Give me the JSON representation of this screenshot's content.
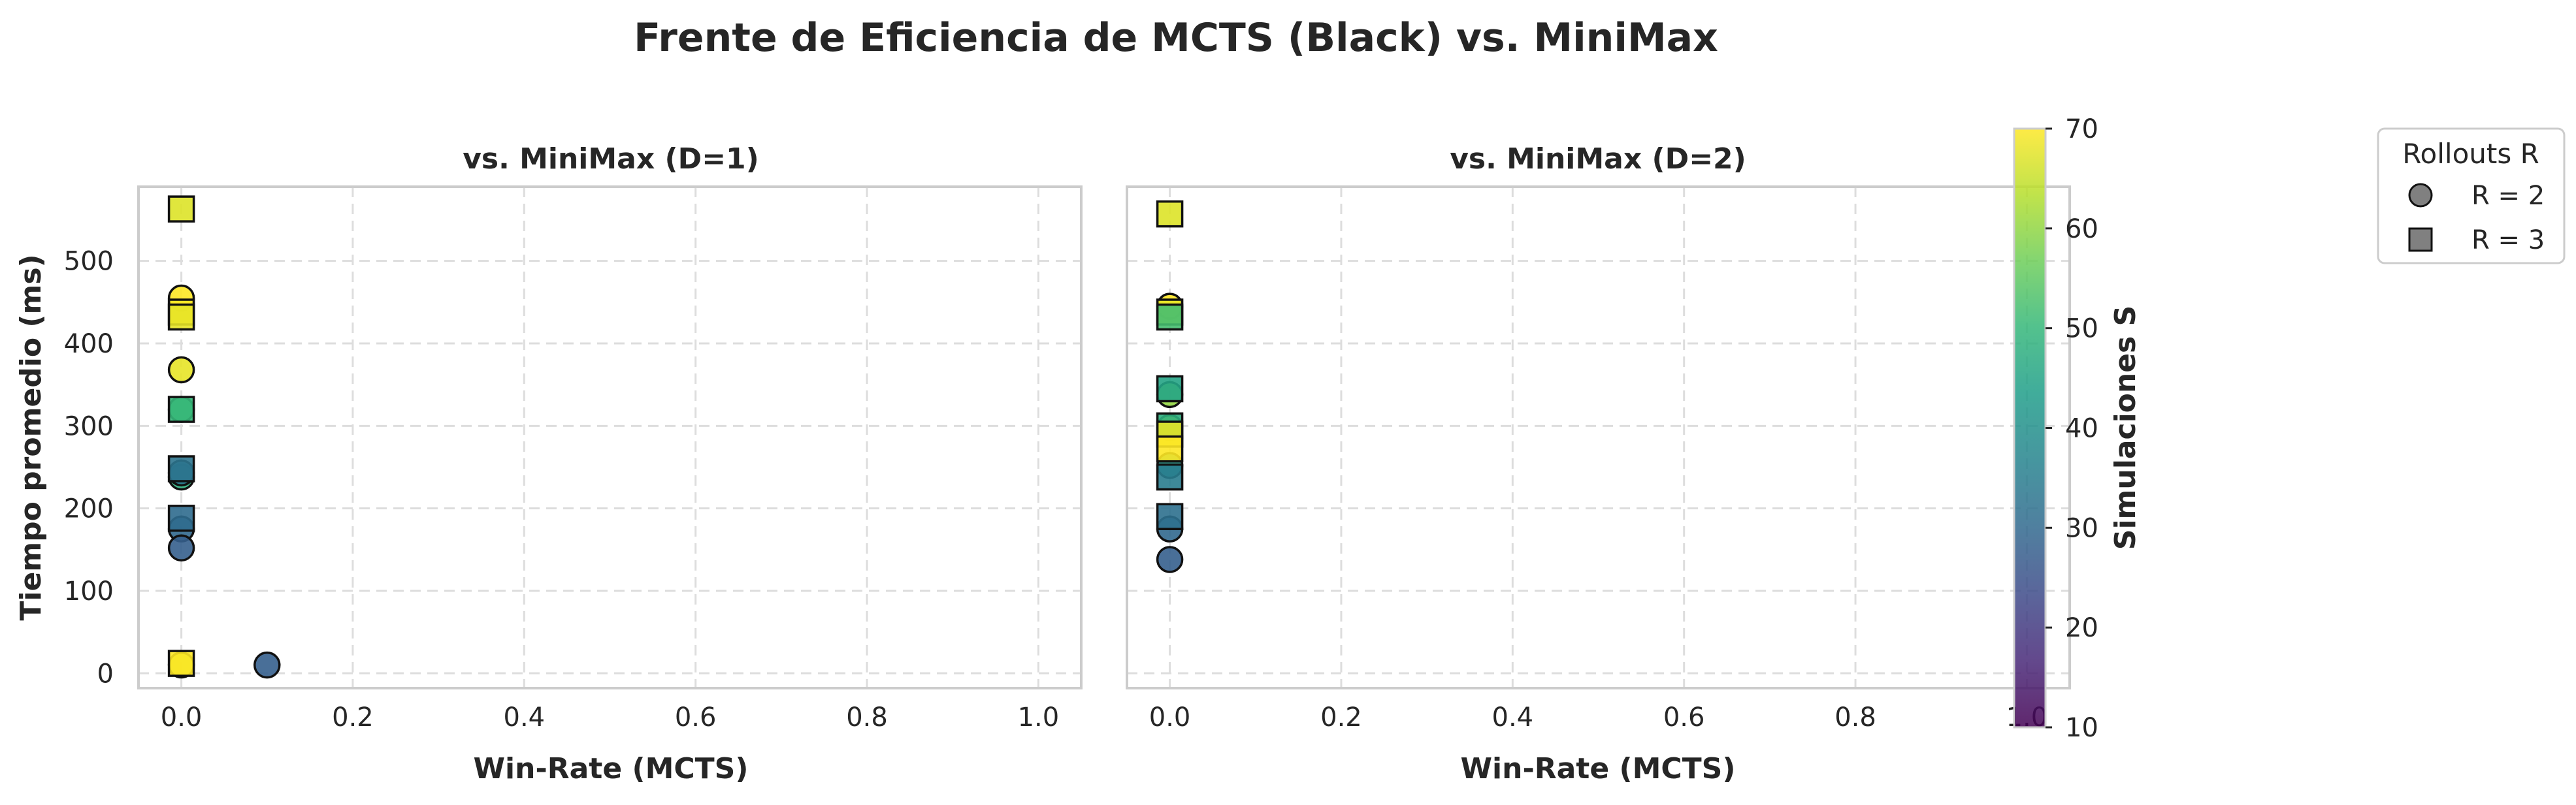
{
  "figure": {
    "suptitle": "Frente de Eficiencia de MCTS (Black) vs. MiniMax"
  },
  "chart_data": [
    {
      "type": "scatter",
      "title": "vs. MiniMax (D=1)",
      "xlabel": "Win-Rate (MCTS)",
      "ylabel": "Tiempo promedio (ms)",
      "xlim": [
        -0.05,
        1.05
      ],
      "ylim": [
        -18,
        590
      ],
      "xticks": [
        "0.0",
        "0.2",
        "0.4",
        "0.6",
        "0.8",
        "1.0"
      ],
      "yticks": [
        "0",
        "100",
        "200",
        "300",
        "400",
        "500"
      ],
      "grid": true,
      "series": [
        {
          "name": "R = 2",
          "marker": "circle",
          "points": [
            {
              "x": 0.0,
              "y": 455,
              "s": 70
            },
            {
              "x": 0.0,
              "y": 368,
              "s": 68
            },
            {
              "x": 0.0,
              "y": 320,
              "s": 52
            },
            {
              "x": 0.0,
              "y": 238,
              "s": 48
            },
            {
              "x": 0.0,
              "y": 243,
              "s": 34
            },
            {
              "x": 0.0,
              "y": 175,
              "s": 30
            },
            {
              "x": 0.0,
              "y": 152,
              "s": 28
            },
            {
              "x": 0.1,
              "y": 10,
              "s": 28
            },
            {
              "x": 0.0,
              "y": 10,
              "s": 66
            }
          ]
        },
        {
          "name": "R = 3",
          "marker": "square",
          "points": [
            {
              "x": 0.0,
              "y": 563,
              "s": 67
            },
            {
              "x": 0.0,
              "y": 438,
              "s": 70
            },
            {
              "x": 0.0,
              "y": 432,
              "s": 68
            },
            {
              "x": 0.0,
              "y": 320,
              "s": 50
            },
            {
              "x": 0.0,
              "y": 248,
              "s": 33
            },
            {
              "x": 0.0,
              "y": 188,
              "s": 31
            },
            {
              "x": 0.0,
              "y": 12,
              "s": 70
            }
          ]
        }
      ]
    },
    {
      "type": "scatter",
      "title": "vs. MiniMax (D=2)",
      "xlabel": "Win-Rate (MCTS)",
      "ylabel": "",
      "xlim": [
        -0.05,
        1.05
      ],
      "ylim": [
        -18,
        590
      ],
      "xticks": [
        "0.0",
        "0.2",
        "0.4",
        "0.6",
        "0.8",
        "1.0"
      ],
      "yticks": [],
      "grid": true,
      "series": [
        {
          "name": "R = 2",
          "marker": "circle",
          "points": [
            {
              "x": 0.0,
              "y": 445,
              "s": 70
            },
            {
              "x": 0.0,
              "y": 338,
              "s": 60
            },
            {
              "x": 0.0,
              "y": 298,
              "s": 66
            },
            {
              "x": 0.0,
              "y": 252,
              "s": 42
            },
            {
              "x": 0.0,
              "y": 175,
              "s": 30
            },
            {
              "x": 0.0,
              "y": 138,
              "s": 28
            }
          ]
        },
        {
          "name": "R = 3",
          "marker": "square",
          "points": [
            {
              "x": 0.0,
              "y": 557,
              "s": 67
            },
            {
              "x": 0.0,
              "y": 438,
              "s": 68
            },
            {
              "x": 0.0,
              "y": 432,
              "s": 52
            },
            {
              "x": 0.0,
              "y": 345,
              "s": 45
            },
            {
              "x": 0.0,
              "y": 300,
              "s": 48
            },
            {
              "x": 0.0,
              "y": 290,
              "s": 68
            },
            {
              "x": 0.0,
              "y": 272,
              "s": 70
            },
            {
              "x": 0.0,
              "y": 238,
              "s": 35
            },
            {
              "x": 0.0,
              "y": 190,
              "s": 32
            }
          ]
        }
      ]
    }
  ],
  "colorbar": {
    "label": "Simulaciones S",
    "colormap": "viridis",
    "range": [
      10,
      70
    ],
    "ticks": [
      "10",
      "20",
      "30",
      "40",
      "50",
      "60",
      "70"
    ]
  },
  "legend": {
    "title": "Rollouts R",
    "placement": "outside-right-top",
    "items": [
      {
        "marker": "circle",
        "label": "R = 2"
      },
      {
        "marker": "square",
        "label": "R = 3"
      }
    ]
  },
  "colors": {
    "axes_edge": "#cccccc",
    "grid": "#dddddd",
    "marker_edge": "#111111",
    "legend_marker": "#808080"
  }
}
